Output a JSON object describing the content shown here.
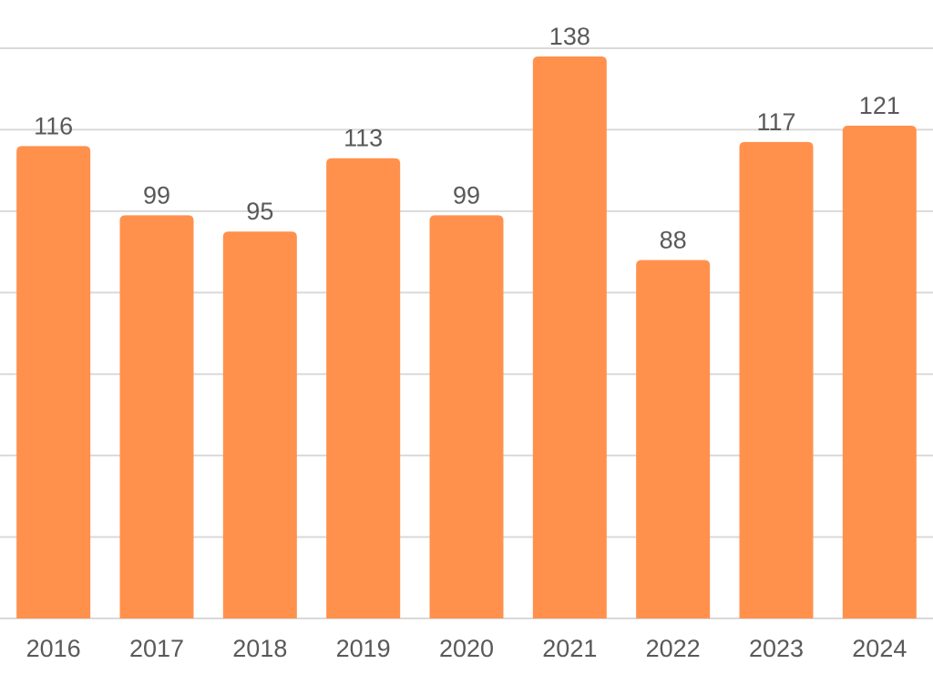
{
  "chart_data": {
    "type": "bar",
    "title": "",
    "xlabel": "",
    "ylabel": "",
    "categories": [
      "2016",
      "2017",
      "2018",
      "2019",
      "2020",
      "2021",
      "2022",
      "2023",
      "2024"
    ],
    "values": [
      116,
      99,
      95,
      113,
      99,
      138,
      88,
      117,
      121
    ],
    "ylim": [
      0,
      140
    ],
    "grid": true,
    "y_tick_labels_visible": false,
    "data_labels": true,
    "colors": {
      "bar": "#ff914d",
      "grid": "#d9d9d9",
      "text": "#595959"
    }
  }
}
